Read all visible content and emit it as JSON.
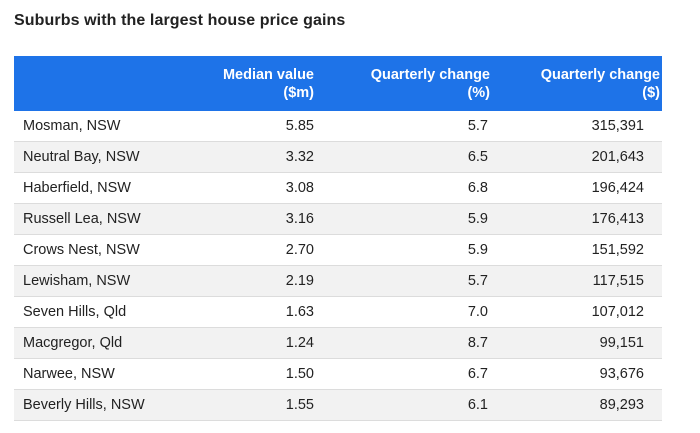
{
  "title": "Suburbs with the largest house price gains",
  "table": {
    "columns": [
      "",
      "Median value ($m)",
      "Quarterly change (%)",
      "Quarterly change ($)"
    ],
    "column_lines": [
      [
        "",
        ""
      ],
      [
        "Median value",
        "($m)"
      ],
      [
        "Quarterly change",
        "(%)"
      ],
      [
        "Quarterly change",
        "($)"
      ]
    ],
    "rows": [
      [
        "Mosman, NSW",
        "5.85",
        "5.7",
        "315,391"
      ],
      [
        "Neutral Bay, NSW",
        "3.32",
        "6.5",
        "201,643"
      ],
      [
        "Haberfield, NSW",
        "3.08",
        "6.8",
        "196,424"
      ],
      [
        "Russell Lea, NSW",
        "3.16",
        "5.9",
        "176,413"
      ],
      [
        "Crows Nest, NSW",
        "2.70",
        "5.9",
        "151,592"
      ],
      [
        "Lewisham, NSW",
        "2.19",
        "5.7",
        "117,515"
      ],
      [
        "Seven Hills, Qld",
        "1.63",
        "7.0",
        "107,012"
      ],
      [
        "Macgregor, Qld",
        "1.24",
        "8.7",
        "99,151"
      ],
      [
        "Narwee, NSW",
        "1.50",
        "6.7",
        "93,676"
      ],
      [
        "Beverly Hills, NSW",
        "1.55",
        "6.1",
        "89,293"
      ]
    ]
  },
  "colors": {
    "header_bg": "#1e73e8",
    "header_text": "#ffffff",
    "row_alt_bg": "#f2f2f2"
  }
}
